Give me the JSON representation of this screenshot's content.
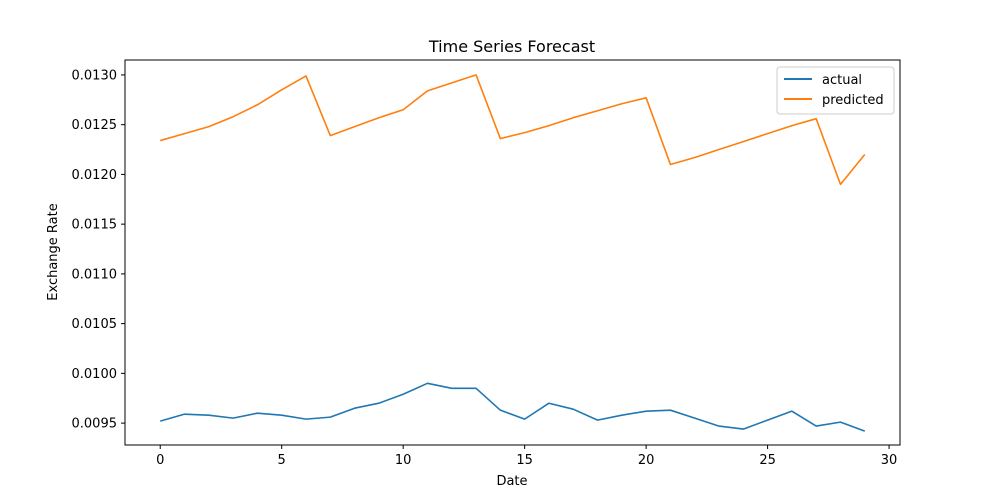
{
  "chart_data": {
    "type": "line",
    "title": "Time Series Forecast",
    "xlabel": "Date",
    "ylabel": "Exchange Rate",
    "xlim": [
      -1.45,
      30.45
    ],
    "ylim": [
      0.00928,
      0.01315
    ],
    "xticks": [
      0,
      5,
      10,
      15,
      20,
      25,
      30
    ],
    "xtick_labels": [
      "0",
      "5",
      "10",
      "15",
      "20",
      "25",
      "30"
    ],
    "yticks": [
      0.0095,
      0.01,
      0.0105,
      0.011,
      0.0115,
      0.012,
      0.0125,
      0.013
    ],
    "ytick_labels": [
      "0.0095",
      "0.0100",
      "0.0105",
      "0.0110",
      "0.0115",
      "0.0120",
      "0.0125",
      "0.0130"
    ],
    "grid": false,
    "legend_position": "top-right",
    "x": [
      0,
      1,
      2,
      3,
      4,
      5,
      6,
      7,
      8,
      9,
      10,
      11,
      12,
      13,
      14,
      15,
      16,
      17,
      18,
      19,
      20,
      21,
      22,
      23,
      24,
      25,
      26,
      27,
      28,
      29
    ],
    "series": [
      {
        "name": "actual",
        "color": "#1f77b4",
        "values": [
          0.00952,
          0.00959,
          0.00958,
          0.00955,
          0.0096,
          0.00958,
          0.00954,
          0.00956,
          0.00965,
          0.0097,
          0.00979,
          0.0099,
          0.00985,
          0.00985,
          0.00963,
          0.00954,
          0.0097,
          0.00964,
          0.00953,
          0.00958,
          0.00962,
          0.00963,
          0.00955,
          0.00947,
          0.00944,
          0.00953,
          0.00962,
          0.00947,
          0.00951,
          0.00942
        ]
      },
      {
        "name": "predicted",
        "color": "#ff7f0e",
        "values": [
          0.01234,
          0.01241,
          0.01248,
          0.01258,
          0.0127,
          0.01285,
          0.01299,
          0.01239,
          0.01248,
          0.01257,
          0.01265,
          0.01284,
          0.01292,
          0.013,
          0.01236,
          0.01242,
          0.01249,
          0.01257,
          0.01264,
          0.01271,
          0.01277,
          0.0121,
          0.01217,
          0.01225,
          0.01233,
          0.01241,
          0.01249,
          0.01256,
          0.0119,
          0.0122
        ]
      }
    ]
  }
}
